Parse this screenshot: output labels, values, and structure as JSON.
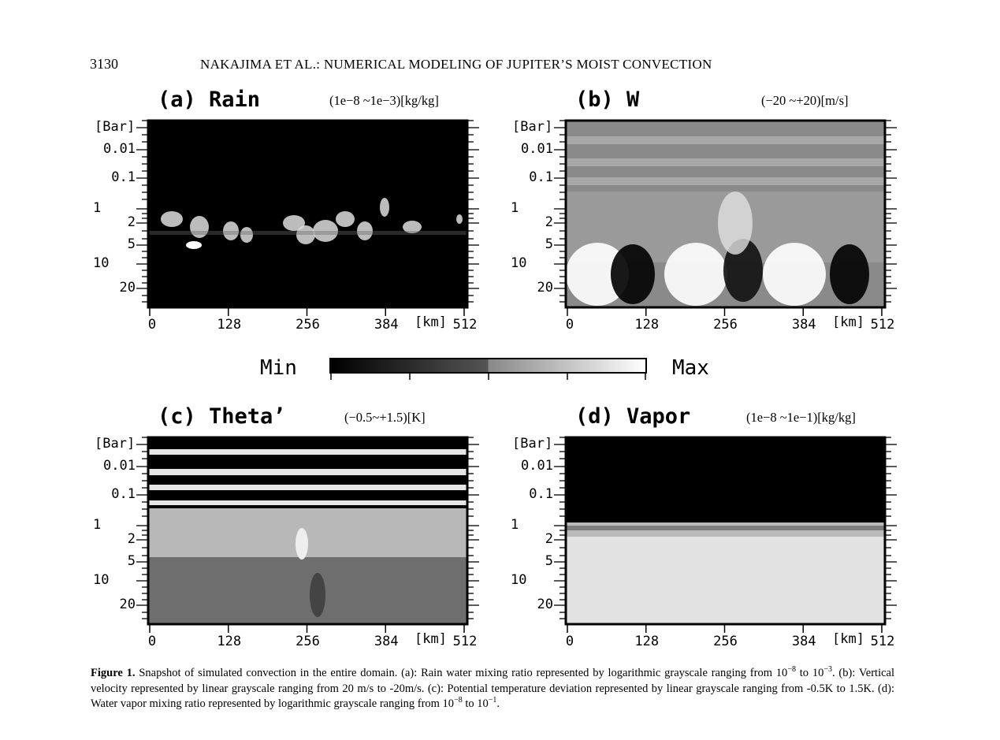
{
  "header": {
    "page_number": "3130",
    "running_title": "NAKAJIMA ET AL.: NUMERICAL MODELING OF JUPITER’S MOIST CONVECTION"
  },
  "panels": [
    {
      "title": "(a) Rain",
      "range": "(1e−8 ~1e−3)[kg/kg]"
    },
    {
      "title": "(b)  W",
      "range": "(−20 ~+20)[m/s]"
    },
    {
      "title": "(c) Theta’",
      "range": "(−0.5~+1.5)[K]"
    },
    {
      "title": "(d) Vapor",
      "range": "(1e−8 ~1e−1)[kg/kg]"
    }
  ],
  "y_axis": {
    "unit": "[Bar]",
    "ticks": [
      "0.01",
      "0.1",
      "1",
      "2",
      "5",
      "10",
      "20"
    ]
  },
  "x_axis": {
    "unit": "[km]",
    "ticks": [
      "0",
      "128",
      "256",
      "384",
      "512"
    ]
  },
  "colorbar": {
    "min": "Min",
    "max": "Max"
  },
  "caption": {
    "label": "Figure 1.",
    "segments": [
      "Snapshot of simulated convection in the entire domain. (a): Rain water mixing ratio represented by logarithmic grayscale ranging from 10",
      "−8",
      " to 10",
      "−3",
      ". (b): Vertical velocity represented by linear grayscale ranging from 20 m/s to -20m/s. (c): Potential temperature deviation represented by linear grayscale ranging from -0.5K to 1.5K. (d): Water vapor mixing ratio represented by logarithmic grayscale ranging from 10",
      "−8",
      " to 10",
      "−1",
      "."
    ]
  }
}
